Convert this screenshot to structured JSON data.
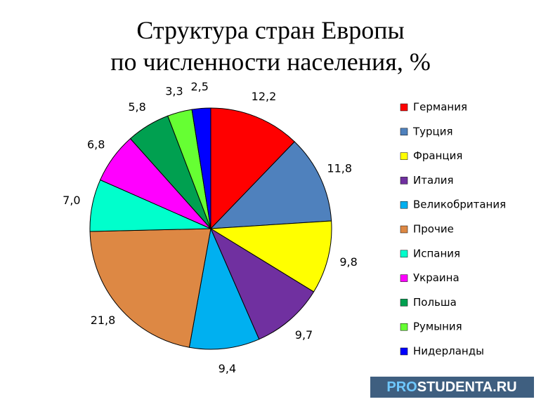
{
  "chart_data": {
    "type": "pie",
    "title": [
      "Структура стран Европы",
      "по численности населения, %"
    ],
    "categories": [
      "Германия",
      "Турция",
      "Франция",
      "Италия",
      "Великобритания",
      "Прочие",
      "Испания",
      "Украина",
      "Польша",
      "Румыния",
      "Нидерланды"
    ],
    "values": [
      12.2,
      11.8,
      9.8,
      9.7,
      9.4,
      21.8,
      7.0,
      6.8,
      5.8,
      3.3,
      2.5
    ],
    "value_labels": [
      "12,2",
      "11,8",
      "9,8",
      "9,7",
      "9,4",
      "21,8",
      "7,0",
      "6,8",
      "5,8",
      "3,3",
      "2,5"
    ],
    "colors": [
      "#ff0000",
      "#4f81bd",
      "#ffff00",
      "#7030a0",
      "#00b0f0",
      "#dd8844",
      "#00ffcc",
      "#ff00ff",
      "#00a050",
      "#66ff33",
      "#0000ff"
    ],
    "legend": "right",
    "watermark": [
      "PRO",
      "STUDENTA.RU"
    ]
  }
}
